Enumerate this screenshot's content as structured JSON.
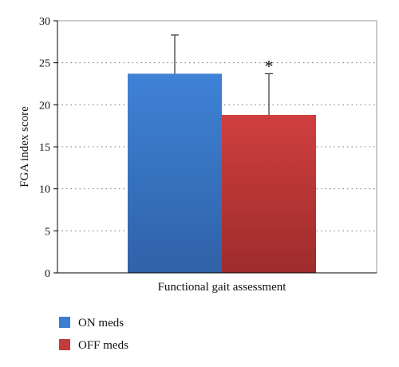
{
  "chart_data": {
    "type": "bar",
    "xlabel": "Functional gait assessment",
    "ylabel": "FGA index score",
    "ylim": [
      0,
      30
    ],
    "yticks": [
      0,
      5,
      10,
      15,
      20,
      25,
      30
    ],
    "grid": "horizontal dotted",
    "legend_position": "bottom-left",
    "series": [
      {
        "name": "ON meds",
        "value": 23.7,
        "error": 4.6,
        "color": "#3c7dd0",
        "annotation": ""
      },
      {
        "name": "OFF meds",
        "value": 18.8,
        "error": 4.9,
        "color": "#c33c3c",
        "annotation": "*"
      }
    ]
  }
}
